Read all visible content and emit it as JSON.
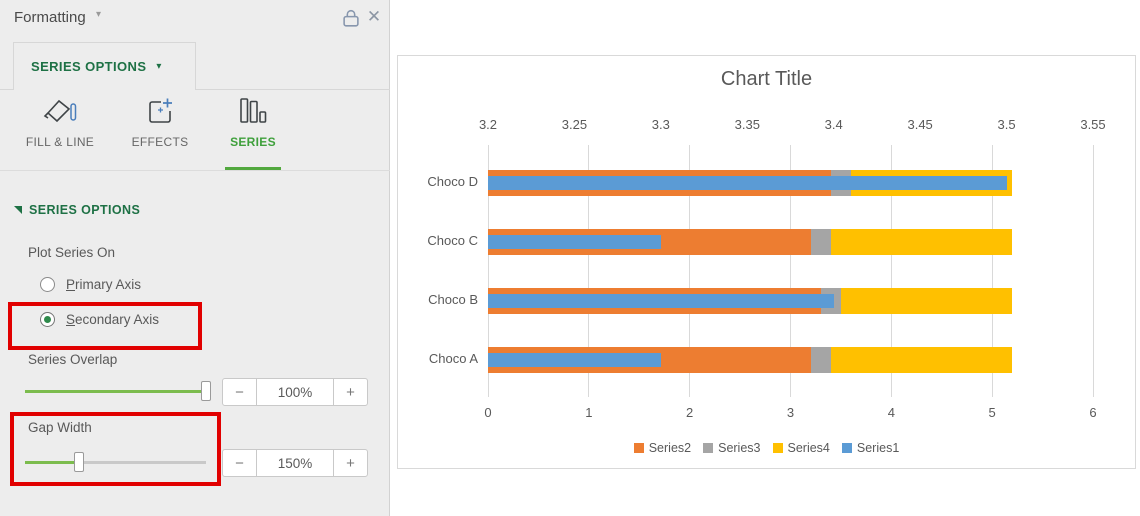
{
  "panel": {
    "title": "Formatting",
    "tab": "SERIES OPTIONS",
    "icon_tabs": [
      {
        "label": "FILL & LINE",
        "active": false
      },
      {
        "label": "EFFECTS",
        "active": false
      },
      {
        "label": "SERIES",
        "active": true
      }
    ],
    "section_header": "SERIES OPTIONS",
    "plot_series_on": {
      "label": "Plot Series On",
      "options": [
        {
          "u": "P",
          "rest": "rimary Axis",
          "label": "Primary Axis",
          "selected": false
        },
        {
          "u": "S",
          "rest": "econdary Axis",
          "label": "Secondary Axis",
          "selected": true,
          "highlighted": true
        }
      ]
    },
    "series_overlap": {
      "label": "Series Overlap",
      "value": "100%",
      "slider_percent": 100
    },
    "gap_width": {
      "label": "Gap Width",
      "value": "150%",
      "slider_percent": 30,
      "highlighted": true
    },
    "stepper_minus": "−",
    "stepper_plus": "+",
    "accent_green": "#1e7145",
    "active_tab_green": "#52a83e",
    "slider_green": "#7cbc4e",
    "highlight_red": "#e10000"
  },
  "chart_data": {
    "type": "bar",
    "orientation": "horizontal",
    "title": "Chart Title",
    "categories": [
      "Choco A",
      "Choco B",
      "Choco C",
      "Choco D"
    ],
    "series": [
      {
        "name": "Series2",
        "color": "#ED7D31",
        "axis": "primary",
        "stacked": true,
        "values": [
          3.2,
          3.3,
          3.2,
          3.4
        ]
      },
      {
        "name": "Series3",
        "color": "#A5A5A5",
        "axis": "primary",
        "stacked": true,
        "values": [
          0.2,
          0.2,
          0.2,
          0.2
        ]
      },
      {
        "name": "Series4",
        "color": "#FFC000",
        "axis": "primary",
        "stacked": true,
        "values": [
          1.8,
          1.7,
          1.8,
          1.6
        ]
      },
      {
        "name": "Series1",
        "color": "#5B9BD5",
        "axis": "secondary",
        "stacked": false,
        "values": [
          3.3,
          3.4,
          3.3,
          3.5
        ]
      }
    ],
    "primary_axis": {
      "min": 0,
      "max": 6,
      "step": 1,
      "position": "bottom",
      "ticks": [
        "0",
        "1",
        "2",
        "3",
        "4",
        "5",
        "6"
      ]
    },
    "secondary_axis": {
      "min": 3.2,
      "max": 3.55,
      "step": 0.05,
      "position": "top",
      "ticks": [
        "3.2",
        "3.25",
        "3.3",
        "3.35",
        "3.4",
        "3.45",
        "3.5",
        "3.55"
      ]
    },
    "legend": [
      "Series2",
      "Series3",
      "Series4",
      "Series1"
    ],
    "legend_position": "bottom",
    "grid": true,
    "gridline_color": "#d9d9d9",
    "text_color": "#595959"
  }
}
